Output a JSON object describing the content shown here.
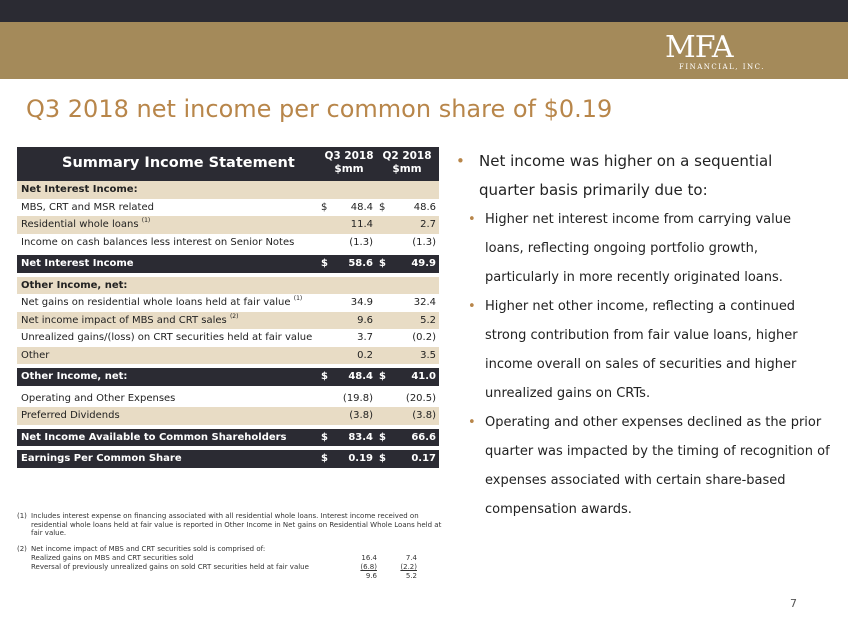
{
  "logo": {
    "mark": "MFA",
    "sub": "FINANCIAL, INC."
  },
  "title": "Q3 2018 net income per common share of $0.19",
  "table": {
    "title": "Summary Income Statement",
    "col1": [
      "Q3 2018",
      "$mm"
    ],
    "col2": [
      "Q2 2018",
      "$mm"
    ],
    "rows": [
      {
        "label": "Net Interest Income:",
        "note": "",
        "v1": "",
        "v2": "",
        "d1": "",
        "d2": ""
      },
      {
        "label": "MBS, CRT and MSR related",
        "note": "",
        "v1": "48.4",
        "v2": "48.6",
        "d1": "$",
        "d2": "$"
      },
      {
        "label": "Residential whole loans",
        "note": "(1)",
        "v1": "11.4",
        "v2": "2.7",
        "d1": "",
        "d2": ""
      },
      {
        "label": "Income on cash balances less interest on Senior Notes",
        "note": "",
        "v1": "(1.3)",
        "v2": "(1.3)",
        "d1": "",
        "d2": ""
      },
      {
        "label": "Net Interest Income",
        "note": "",
        "v1": "58.6",
        "v2": "49.9",
        "d1": "$",
        "d2": "$"
      },
      {
        "label": "Other Income, net:",
        "note": "",
        "v1": "",
        "v2": "",
        "d1": "",
        "d2": ""
      },
      {
        "label": "Net gains on residential whole loans held at fair value",
        "note": "(1)",
        "v1": "34.9",
        "v2": "32.4",
        "d1": "",
        "d2": ""
      },
      {
        "label": "Net income impact of MBS and CRT sales",
        "note": "(2)",
        "v1": "9.6",
        "v2": "5.2",
        "d1": "",
        "d2": ""
      },
      {
        "label": "Unrealized gains/(loss) on CRT securities held at fair value",
        "note": "",
        "v1": "3.7",
        "v2": "(0.2)",
        "d1": "",
        "d2": ""
      },
      {
        "label": "Other",
        "note": "",
        "v1": "0.2",
        "v2": "3.5",
        "d1": "",
        "d2": ""
      },
      {
        "label": "Other Income, net:",
        "note": "",
        "v1": "48.4",
        "v2": "41.0",
        "d1": "$",
        "d2": "$"
      },
      {
        "label": "Operating and Other Expenses",
        "note": "",
        "v1": "(19.8)",
        "v2": "(20.5)",
        "d1": "",
        "d2": ""
      },
      {
        "label": "Preferred Dividends",
        "note": "",
        "v1": "(3.8)",
        "v2": "(3.8)",
        "d1": "",
        "d2": ""
      },
      {
        "label": "Net Income Available to Common Shareholders",
        "note": "",
        "v1": "83.4",
        "v2": "66.6",
        "d1": "$",
        "d2": "$"
      },
      {
        "label": "Earnings Per Common Share",
        "note": "",
        "v1": "0.19",
        "v2": "0.17",
        "d1": "$",
        "d2": "$"
      }
    ]
  },
  "footnotes": {
    "n1": "(1)",
    "t1": "Includes interest expense on financing associated with all residential whole loans. Interest income received on residential whole loans held at fair value is reported in Other Income in Net gains on Residential Whole Loans held at fair value.",
    "n2": "(2)",
    "t2": "Net income impact of MBS and CRT securities sold is comprised of:",
    "lines": [
      {
        "label": "Realized gains on MBS and CRT securities sold",
        "v1": "16.4",
        "v2": "7.4"
      },
      {
        "label": "Reversal of previously unrealized gains on sold CRT securities held at fair value",
        "v1": "(6.8)",
        "v2": "(2.2)"
      },
      {
        "label": "",
        "v1": "9.6",
        "v2": "5.2"
      }
    ]
  },
  "bullets": {
    "main": "Net income was higher on a sequential quarter basis primarily due to:",
    "subs": [
      "Higher net interest income from carrying value loans, reflecting ongoing portfolio growth, particularly in more recently originated loans.",
      "Higher net other income, reflecting a continued strong contribution from fair value loans, higher income overall on sales of securities and higher unrealized gains on CRTs.",
      "Operating and other expenses declined as the prior quarter was impacted by the timing of recognition of expenses associated with certain share-based compensation awards."
    ]
  },
  "page_number": "7"
}
